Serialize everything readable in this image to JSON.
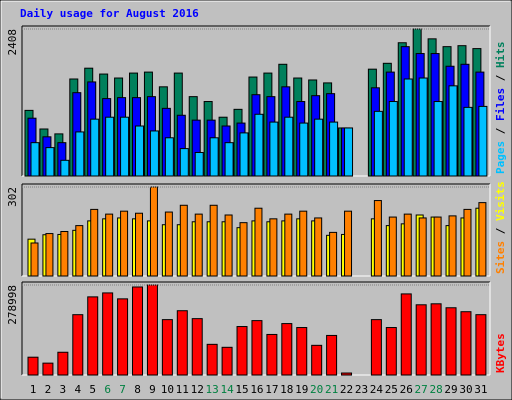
{
  "title": "Daily usage for August 2016",
  "chart_data": [
    {
      "type": "bar",
      "ylim": [
        0,
        2408
      ],
      "yticks": [
        2408
      ],
      "legend_separator": " / ",
      "series": [
        {
          "name": "Pages",
          "color": "#00c0ff",
          "values": [
            546,
            465,
            257,
            722,
            931,
            963,
            963,
            819,
            738,
            626,
            449,
            385,
            626,
            546,
            706,
            1011,
            883,
            963,
            867,
            931,
            883,
            787,
            0,
            1059,
            1220,
            1589,
            1605,
            1220,
            1477,
            1124,
            1140
          ]
        },
        {
          "name": "Files",
          "color": "#0000ff",
          "values": [
            947,
            642,
            546,
            1365,
            1541,
            1268,
            1284,
            1284,
            1300,
            1108,
            995,
            915,
            915,
            819,
            867,
            1332,
            1300,
            1461,
            1220,
            1316,
            1349,
            787,
            0,
            1445,
            1702,
            2119,
            2006,
            2006,
            1798,
            1830,
            1702
          ]
        },
        {
          "name": "Hits",
          "color": "#00805c",
          "values": [
            1075,
            770,
            690,
            1589,
            1766,
            1670,
            1605,
            1686,
            1702,
            1461,
            1686,
            1300,
            1220,
            963,
            1092,
            1621,
            1686,
            1830,
            1605,
            1573,
            1525,
            787,
            0,
            1750,
            1846,
            2183,
            2408,
            2247,
            2119,
            2135,
            2087
          ]
        }
      ]
    },
    {
      "type": "bar",
      "ylim": [
        0,
        302
      ],
      "yticks": [
        302
      ],
      "legend_separator": " / ",
      "series": [
        {
          "name": "Sites",
          "color": "#ff8000",
          "values": [
            112,
            144,
            151,
            171,
            226,
            210,
            220,
            213,
            302,
            217,
            240,
            210,
            240,
            207,
            181,
            230,
            194,
            210,
            220,
            197,
            148,
            220,
            0,
            256,
            200,
            210,
            197,
            200,
            204,
            226,
            249
          ]
        },
        {
          "name": "Visits",
          "color": "#ffff00",
          "values": [
            125,
            140,
            141,
            155,
            187,
            194,
            197,
            194,
            187,
            174,
            174,
            184,
            184,
            184,
            164,
            187,
            184,
            187,
            194,
            187,
            138,
            141,
            0,
            194,
            171,
            177,
            207,
            200,
            171,
            197,
            230
          ]
        }
      ]
    },
    {
      "type": "bar",
      "ylim": [
        0,
        278998
      ],
      "yticks": [
        278998
      ],
      "categories": [
        "1",
        "2",
        "3",
        "4",
        "5",
        "6",
        "7",
        "8",
        "9",
        "10",
        "11",
        "12",
        "13",
        "14",
        "15",
        "16",
        "17",
        "18",
        "19",
        "20",
        "21",
        "22",
        "23",
        "24",
        "25",
        "26",
        "27",
        "28",
        "29",
        "30",
        "31"
      ],
      "weekend_indices": [
        5,
        6,
        12,
        13,
        19,
        20,
        26,
        27
      ],
      "weekend_color": "#008040",
      "series": [
        {
          "name": "KBytes",
          "color": "#ff0000",
          "values": [
            55186,
            36790,
            70520,
            187020,
            242200,
            254470,
            236070,
            272860,
            278998,
            171690,
            199290,
            174750,
            95050,
            85840,
            150230,
            168620,
            125700,
            159430,
            147160,
            91980,
            122640,
            6130,
            0,
            171690,
            147160,
            251400,
            217680,
            220750,
            208480,
            196220,
            187020
          ]
        }
      ]
    }
  ]
}
